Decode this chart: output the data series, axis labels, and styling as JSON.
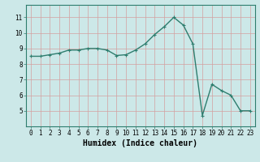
{
  "x": [
    0,
    1,
    2,
    3,
    4,
    5,
    6,
    7,
    8,
    9,
    10,
    11,
    12,
    13,
    14,
    15,
    16,
    17,
    18,
    19,
    20,
    21,
    22,
    23
  ],
  "y": [
    8.5,
    8.5,
    8.6,
    8.7,
    8.9,
    8.9,
    9.0,
    9.0,
    8.9,
    8.55,
    8.6,
    8.9,
    9.3,
    9.9,
    10.4,
    11.0,
    10.5,
    9.3,
    4.7,
    6.7,
    6.3,
    6.0,
    5.0,
    5.0
  ],
  "line_color": "#2e7d6e",
  "marker": "+",
  "marker_size": 3,
  "linewidth": 1.0,
  "xlabel": "Humidex (Indice chaleur)",
  "xlabel_fontsize": 7,
  "xlabel_fontweight": "bold",
  "background_color": "#cce8e8",
  "grid_color": "#d4a0a0",
  "xlim": [
    -0.5,
    23.5
  ],
  "ylim": [
    4.0,
    11.8
  ],
  "yticks": [
    5,
    6,
    7,
    8,
    9,
    10,
    11
  ],
  "xticks": [
    0,
    1,
    2,
    3,
    4,
    5,
    6,
    7,
    8,
    9,
    10,
    11,
    12,
    13,
    14,
    15,
    16,
    17,
    18,
    19,
    20,
    21,
    22,
    23
  ],
  "tick_fontsize": 5.5,
  "spine_color": "#2e7d6e"
}
